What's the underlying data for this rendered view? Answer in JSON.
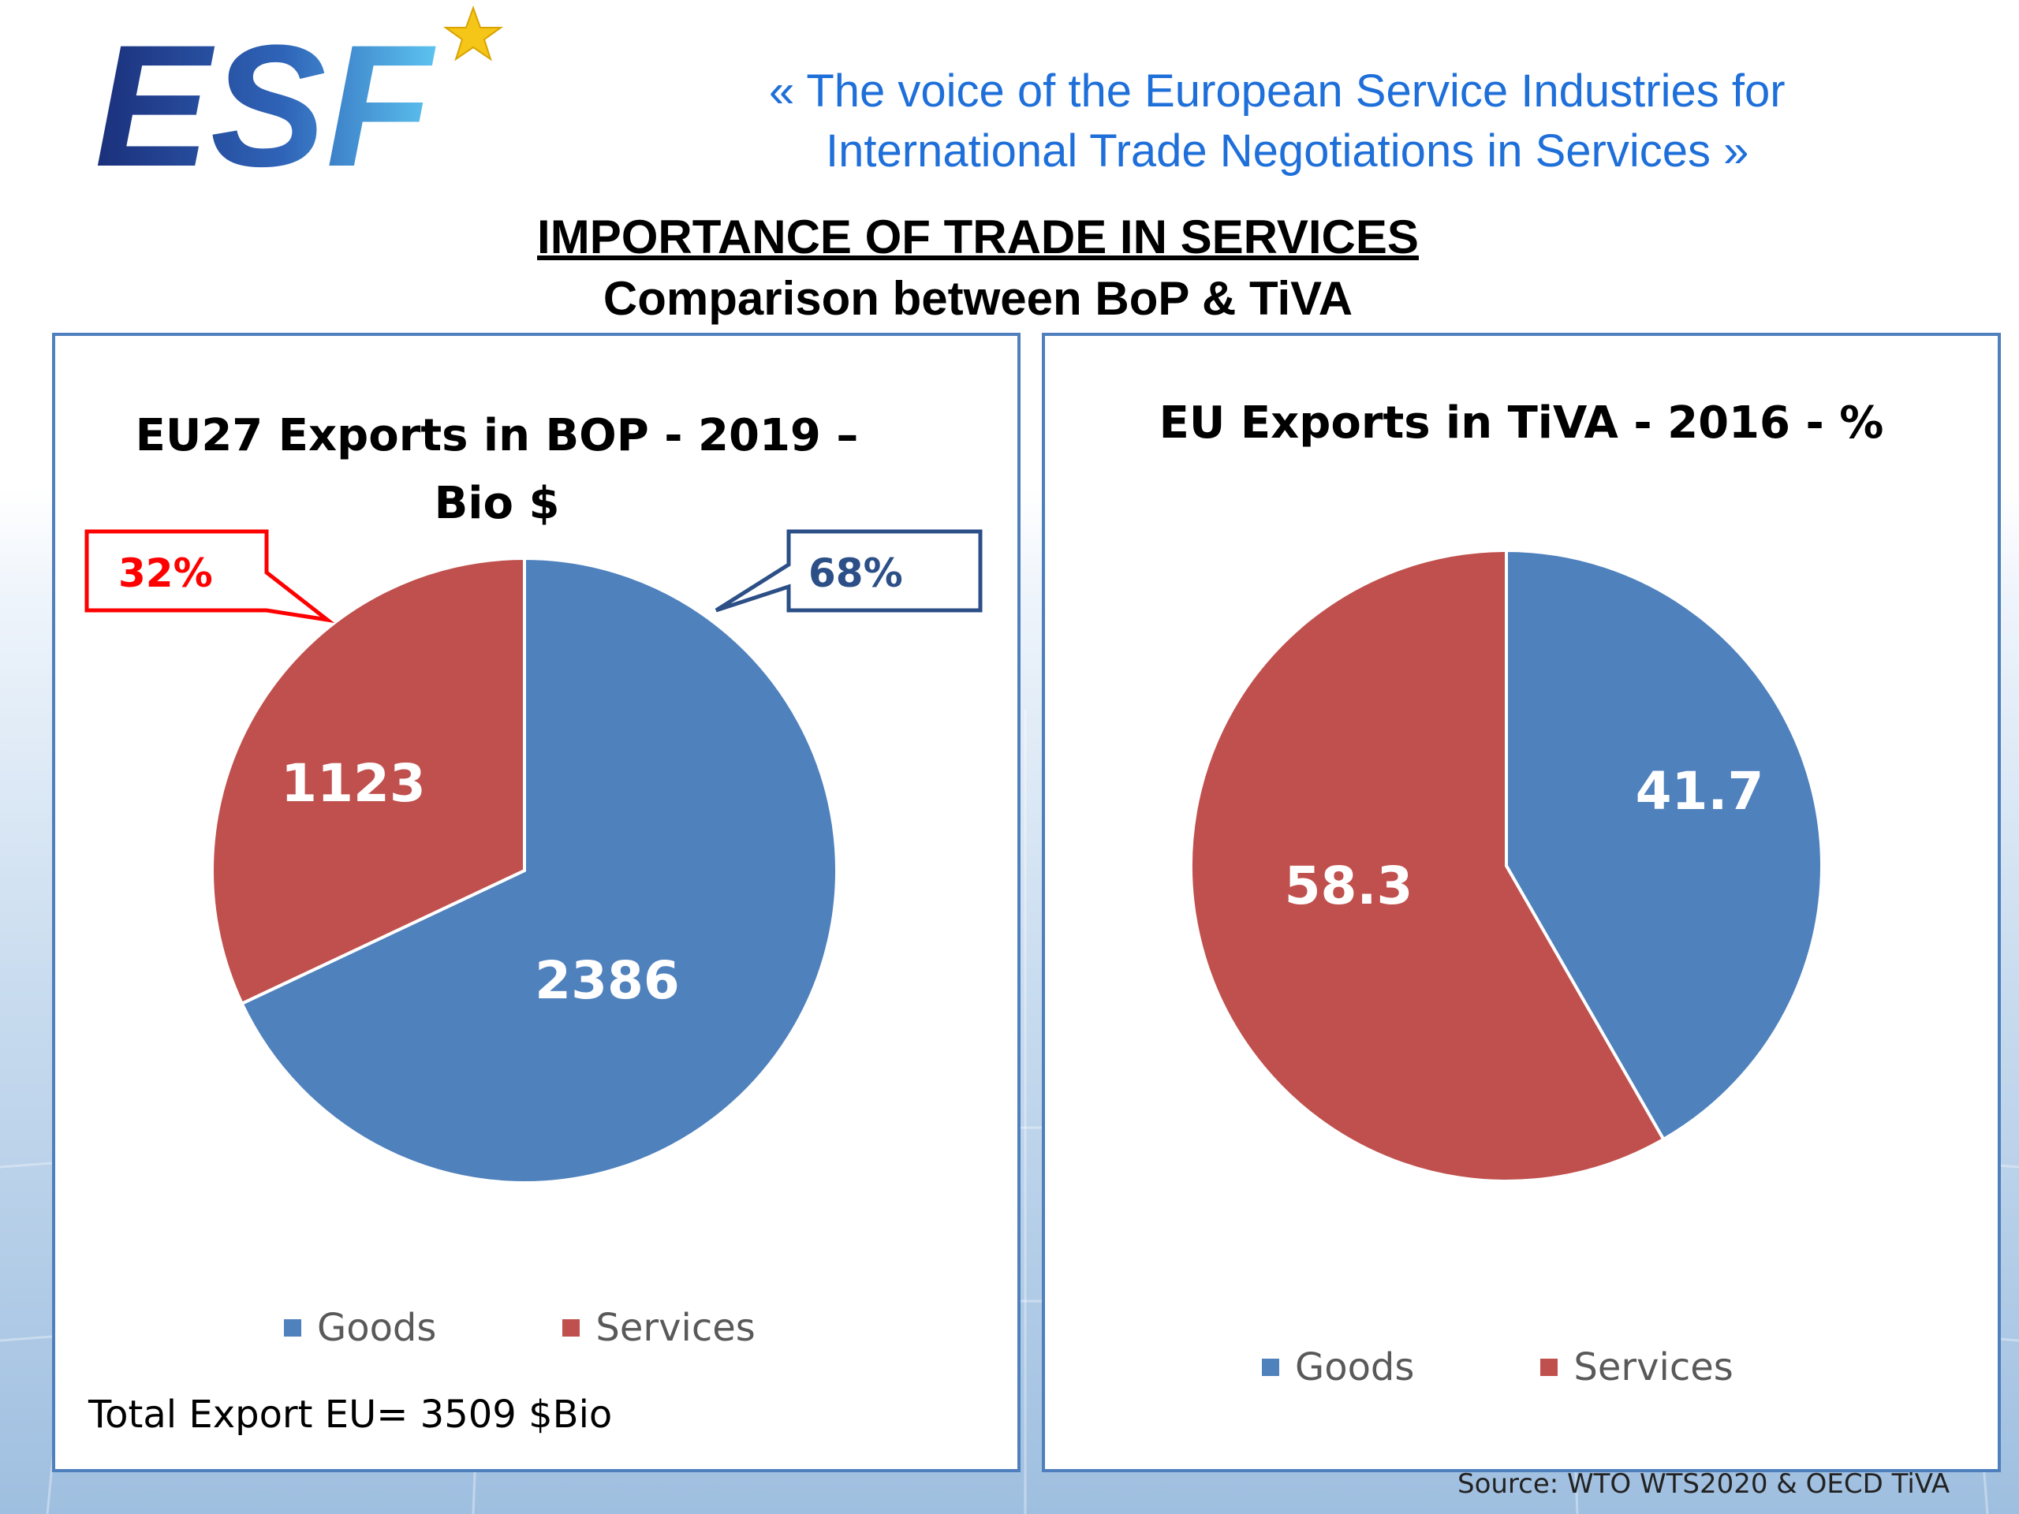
{
  "header": {
    "logo_text": "ESF",
    "tagline_line1": "«  The voice of the European Service Industries for",
    "tagline_line2": "International Trade Negotiations in Services  »"
  },
  "title": {
    "main": "IMPORTANCE OF TRADE IN SERVICES",
    "sub": "Comparison between BoP & TiVA"
  },
  "colors": {
    "goods": "#4f81bd",
    "services": "#c0504d",
    "accent_blue": "#1e6fd9",
    "callout_red": "#ff0000",
    "callout_blue": "#2b4f86"
  },
  "chart_data": [
    {
      "type": "pie",
      "title": "EU27 Exports in BOP - 2019 –",
      "title_line2": "Bio $",
      "categories": [
        "Goods",
        "Services"
      ],
      "values": [
        2386,
        1123
      ],
      "value_labels": [
        "2386",
        "1123"
      ],
      "callouts": [
        "68%",
        "32%"
      ],
      "legend": [
        "Goods",
        "Services"
      ],
      "legend_position": "bottom"
    },
    {
      "type": "pie",
      "title": "EU Exports in TiVA - 2016 - %",
      "categories": [
        "Goods",
        "Services"
      ],
      "values": [
        41.7,
        58.3
      ],
      "value_labels": [
        "41.7",
        "58.3"
      ],
      "legend": [
        "Goods",
        "Services"
      ],
      "legend_position": "bottom"
    }
  ],
  "footer": {
    "total_export": "Total Export EU= 3509 $Bio",
    "source": "Source: WTO WTS2020 & OECD TiVA"
  }
}
